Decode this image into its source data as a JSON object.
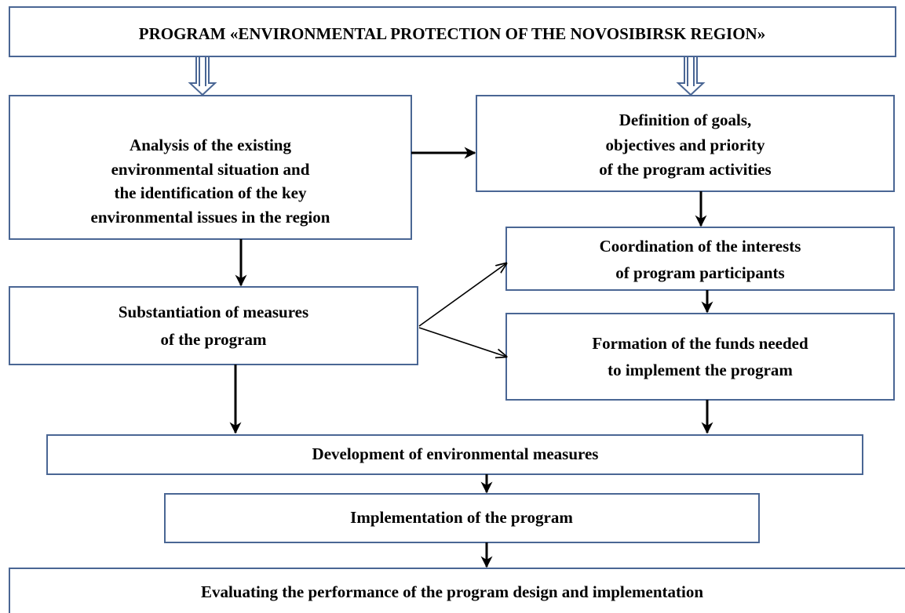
{
  "title": "PROGRAM  «ENVIRONMENTAL PROTECTION OF THE NOVOSIBIRSK REGION»",
  "nodes": [
    {
      "lines": [
        "Analysis of the existing",
        "environmental situation and",
        "the identification of the key",
        "environmental issues in the region"
      ]
    },
    {
      "lines": [
        "Definition of goals,",
        "objectives and priority",
        "of the program activities"
      ]
    },
    {
      "lines": [
        "Coordination of the interests",
        "of program participants"
      ]
    },
    {
      "lines": [
        "Substantiation of measures",
        "of the program"
      ]
    },
    {
      "lines": [
        "Formation of the funds needed",
        "to implement the program"
      ]
    },
    {
      "lines": [
        "Development of environmental measures"
      ]
    },
    {
      "lines": [
        "Implementation of the program"
      ]
    },
    {
      "lines": [
        "Evaluating the performance of the program design and implementation"
      ]
    }
  ]
}
